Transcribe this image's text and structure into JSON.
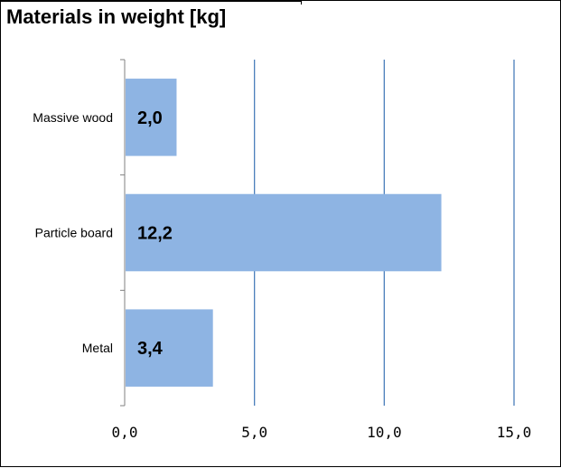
{
  "chart_data": {
    "type": "bar",
    "orientation": "horizontal",
    "title": "Materials in weight [kg]",
    "categories": [
      "Massive wood",
      "Particle board",
      "Metal"
    ],
    "values": [
      2.0,
      12.2,
      3.4
    ],
    "data_labels": [
      "2,0",
      "12,2",
      "3,4"
    ],
    "xlim": [
      0,
      15
    ],
    "xticks": [
      0,
      5,
      10,
      15
    ],
    "xtick_labels": [
      "0,0",
      "5,0",
      "10,0",
      "15,0"
    ],
    "xlabel": "",
    "ylabel": "",
    "grid": "vertical major gridlines",
    "legend": "none",
    "colors": {
      "bar": "#8EB4E3",
      "gridline": "#4A7EBB",
      "axis": "#808080"
    }
  }
}
